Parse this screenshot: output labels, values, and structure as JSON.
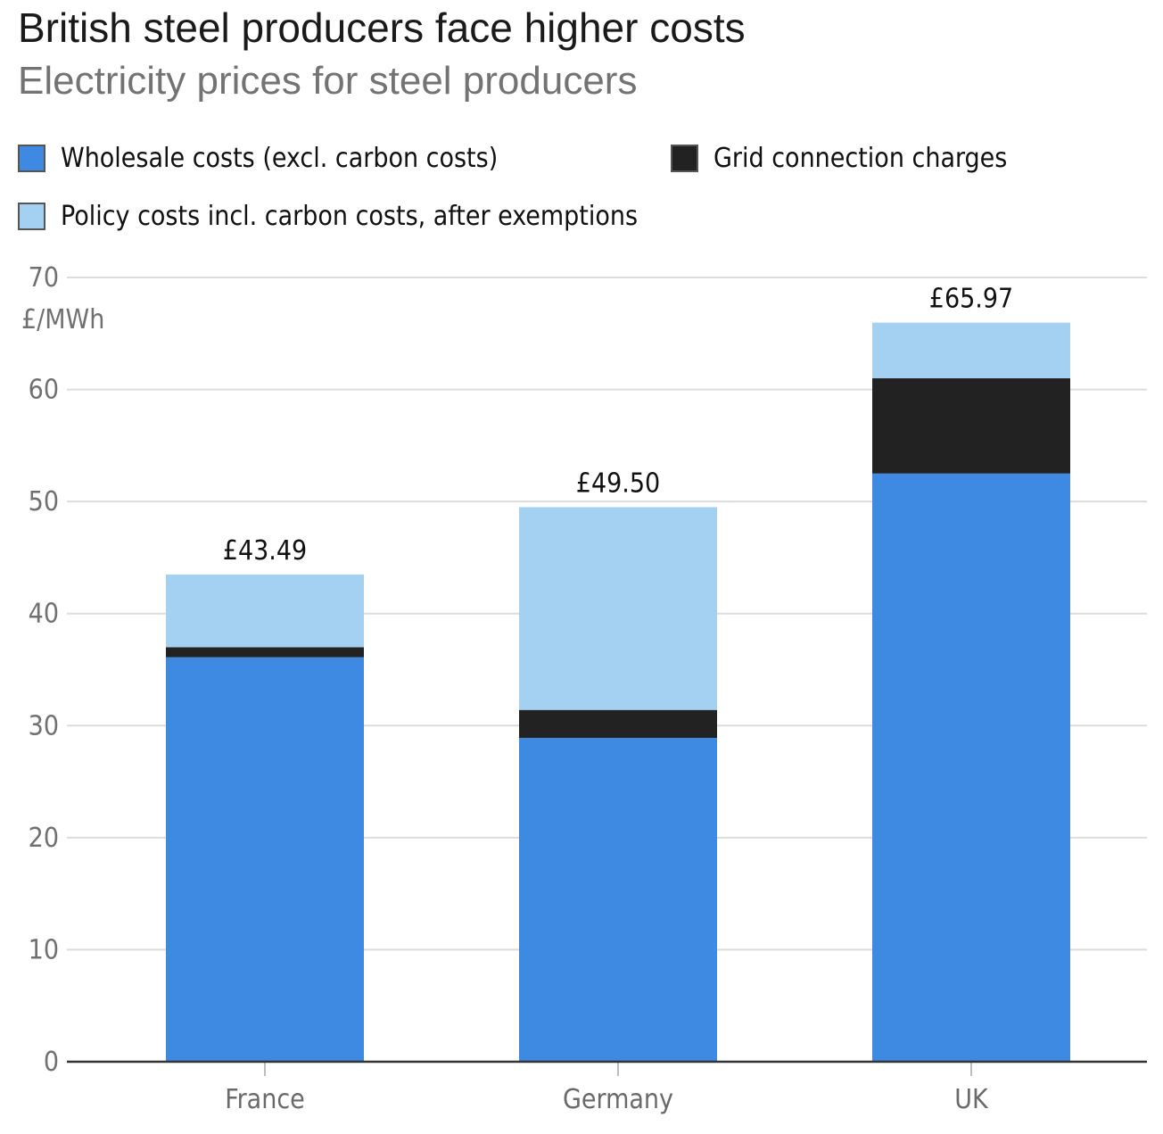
{
  "header": {
    "title": "British steel producers face higher costs",
    "subtitle": "Electricity prices for steel producers"
  },
  "legend": [
    {
      "label": "Wholesale costs (excl. carbon costs)",
      "color": "#3e8ae2",
      "icon": "swatch-blue"
    },
    {
      "label": "Grid connection charges",
      "color": "#222222",
      "icon": "swatch-black"
    },
    {
      "label": "Policy costs incl. carbon costs, after exemptions",
      "color": "#a4d0f2",
      "icon": "swatch-lightblue"
    }
  ],
  "chart_data": {
    "type": "bar",
    "stacked": true,
    "title": "British steel producers face higher costs",
    "subtitle": "Electricity prices for steel producers",
    "ylabel": "£/MWh",
    "xlabel": "",
    "ylim": [
      0,
      70
    ],
    "yticks": [
      0,
      10,
      20,
      30,
      40,
      50,
      60,
      70
    ],
    "grid": true,
    "legend_position": "top",
    "categories": [
      "France",
      "Germany",
      "UK"
    ],
    "series": [
      {
        "name": "Wholesale costs (excl. carbon costs)",
        "color": "#3e8ae2",
        "values": [
          36.1,
          28.9,
          52.5
        ]
      },
      {
        "name": "Grid connection charges",
        "color": "#222222",
        "values": [
          0.9,
          2.5,
          8.5
        ]
      },
      {
        "name": "Policy costs incl. carbon costs, after exemptions",
        "color": "#a4d0f2",
        "values": [
          6.49,
          18.1,
          4.97
        ]
      }
    ],
    "totals": [
      43.49,
      49.5,
      65.97
    ],
    "total_labels": [
      "£43.49",
      "£49.50",
      "£65.97"
    ]
  }
}
